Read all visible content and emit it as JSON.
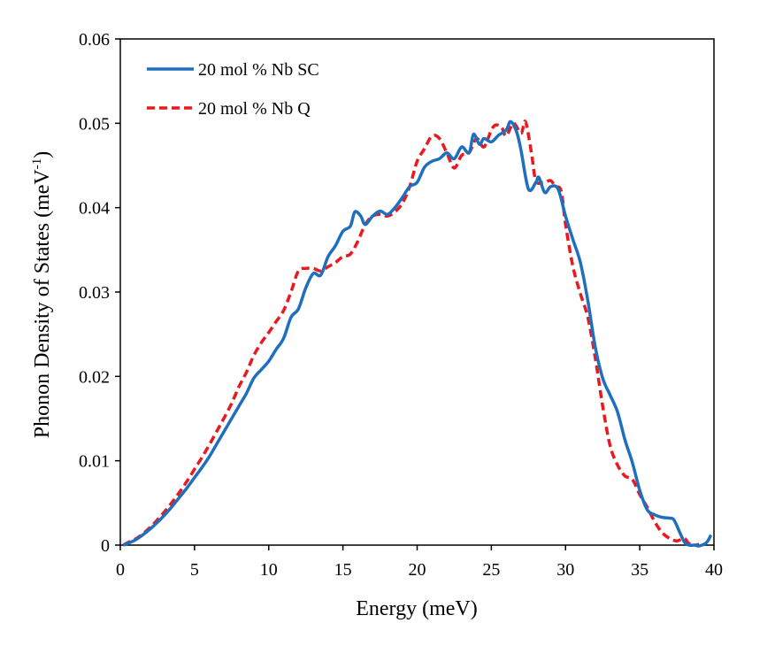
{
  "chart_data": {
    "type": "line",
    "title": "",
    "xlabel": "Energy (meV)",
    "ylabel": {
      "main": "Phonon Density of States (meV",
      "sup": "-1",
      "close": ")"
    },
    "xlim": [
      0,
      40
    ],
    "ylim": [
      0,
      0.06
    ],
    "x_ticks": [
      0,
      5,
      10,
      15,
      20,
      25,
      30,
      35,
      40
    ],
    "x_tick_labels": [
      "0",
      "5",
      "10",
      "15",
      "20",
      "25",
      "30",
      "35",
      "40"
    ],
    "y_ticks": [
      0,
      0.01,
      0.02,
      0.03,
      0.04,
      0.05,
      0.06
    ],
    "y_tick_labels": [
      "0",
      "0.01",
      "0.02",
      "0.03",
      "0.04",
      "0.05",
      "0.06"
    ],
    "grid": false,
    "legend_position": "top-left",
    "series": [
      {
        "name": "20 mol % Nb SC",
        "color": "#1f6fbf",
        "style": "solid",
        "x": [
          0.2,
          0.5,
          1,
          1.5,
          2,
          2.5,
          3,
          3.5,
          4,
          4.5,
          5,
          5.5,
          6,
          6.5,
          7,
          7.5,
          8,
          8.5,
          9,
          9.5,
          10,
          10.5,
          11,
          11.5,
          12,
          12.5,
          13,
          13.5,
          14,
          14.5,
          15,
          15.5,
          15.8,
          16.2,
          16.5,
          17,
          17.5,
          18,
          18.5,
          19,
          19.5,
          20,
          20.5,
          21,
          21.5,
          22,
          22.5,
          23,
          23.5,
          23.8,
          24.2,
          24.5,
          25,
          25.5,
          26,
          26.3,
          26.7,
          27,
          27.5,
          28,
          28.2,
          28.6,
          29,
          29.5,
          30,
          30.5,
          31,
          31.5,
          32,
          32.5,
          33,
          33.5,
          34,
          34.5,
          35,
          35.5,
          36,
          36.5,
          37,
          37.3,
          37.7,
          38,
          38.3,
          38.7,
          39,
          39.5,
          39.8
        ],
        "values": [
          0,
          0.0002,
          0.0006,
          0.0012,
          0.0019,
          0.0027,
          0.0036,
          0.0046,
          0.0057,
          0.0068,
          0.008,
          0.0092,
          0.0105,
          0.012,
          0.0135,
          0.015,
          0.0165,
          0.018,
          0.0198,
          0.0208,
          0.0218,
          0.0232,
          0.0245,
          0.027,
          0.028,
          0.0305,
          0.0322,
          0.032,
          0.0342,
          0.0355,
          0.0372,
          0.0378,
          0.0395,
          0.039,
          0.038,
          0.039,
          0.0396,
          0.0392,
          0.04,
          0.0412,
          0.0425,
          0.043,
          0.0448,
          0.0455,
          0.0458,
          0.0465,
          0.0458,
          0.0472,
          0.0465,
          0.0487,
          0.0475,
          0.0482,
          0.0478,
          0.0486,
          0.0492,
          0.0502,
          0.049,
          0.0468,
          0.0422,
          0.043,
          0.0436,
          0.0418,
          0.0425,
          0.0422,
          0.039,
          0.0362,
          0.0335,
          0.029,
          0.0235,
          0.0198,
          0.0178,
          0.0158,
          0.0125,
          0.0098,
          0.0065,
          0.0042,
          0.0036,
          0.0033,
          0.0032,
          0.003,
          0.0015,
          0.0004,
          0,
          0,
          -0.0001,
          0.0003,
          0.0012
        ]
      },
      {
        "name": "20 mol % Nb Q",
        "color": "#e8191f",
        "style": "dashed",
        "x": [
          0.2,
          0.5,
          1,
          1.5,
          2,
          2.5,
          3,
          3.5,
          4,
          4.5,
          5,
          5.5,
          6,
          6.5,
          7,
          7.5,
          8,
          8.5,
          9,
          9.5,
          10,
          10.5,
          11,
          11.5,
          12,
          12.5,
          13,
          13.5,
          14,
          14.5,
          15,
          15.5,
          16,
          16.5,
          17,
          17.5,
          18,
          18.5,
          19,
          19.5,
          20,
          20.5,
          21,
          21.5,
          22,
          22.5,
          23,
          23.5,
          24,
          24.5,
          25,
          25.3,
          25.7,
          26,
          26.5,
          27,
          27.3,
          27.7,
          28,
          28.5,
          29,
          29.3,
          29.7,
          30,
          30.5,
          31,
          31.5,
          32,
          32.5,
          33,
          33.5,
          34,
          34.5,
          35,
          35.5,
          36,
          36.5,
          37,
          37.5,
          38,
          38.3,
          38.7,
          39
        ],
        "values": [
          0,
          0.0003,
          0.0007,
          0.0013,
          0.0021,
          0.003,
          0.004,
          0.0051,
          0.0063,
          0.0076,
          0.009,
          0.0104,
          0.0119,
          0.0135,
          0.0151,
          0.0168,
          0.0188,
          0.0205,
          0.0225,
          0.024,
          0.0252,
          0.0265,
          0.0278,
          0.03,
          0.0325,
          0.0328,
          0.0328,
          0.0325,
          0.033,
          0.0335,
          0.0342,
          0.0345,
          0.036,
          0.038,
          0.039,
          0.0392,
          0.039,
          0.0395,
          0.0405,
          0.0425,
          0.0455,
          0.047,
          0.0485,
          0.0482,
          0.0465,
          0.0447,
          0.0462,
          0.0465,
          0.0482,
          0.0472,
          0.0492,
          0.0498,
          0.0495,
          0.0485,
          0.05,
          0.0488,
          0.0502,
          0.0465,
          0.0432,
          0.043,
          0.0432,
          0.0425,
          0.042,
          0.038,
          0.033,
          0.0298,
          0.027,
          0.0222,
          0.0165,
          0.0118,
          0.0095,
          0.0082,
          0.0078,
          0.006,
          0.0045,
          0.0028,
          0.0015,
          0.0008,
          0.0005,
          0.0008,
          0.0002,
          0,
          0.0001
        ]
      }
    ]
  }
}
